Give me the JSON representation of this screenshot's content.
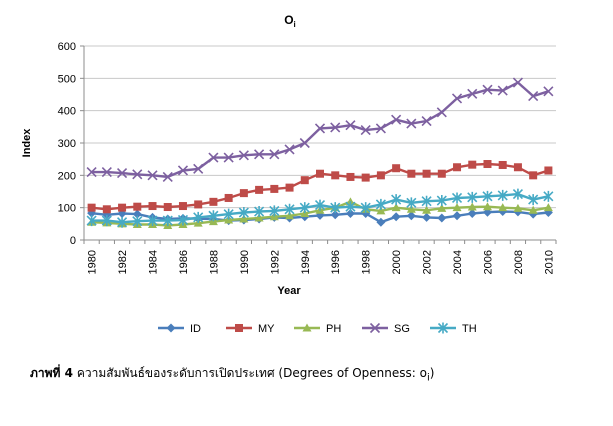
{
  "figure": {
    "caption_bold": "ภาพที่ 4",
    "caption_text": "ความสัมพันธ์ของระดับการเปิดประเทศ (Degrees of Openness: o",
    "caption_sub": "i",
    "caption_close": ")"
  },
  "chart_data": {
    "type": "line",
    "title": "O",
    "title_sub": "i",
    "xlabel": "Year",
    "ylabel": "Index",
    "ylim": [
      0,
      600
    ],
    "yticks": [
      0,
      100,
      200,
      300,
      400,
      500,
      600
    ],
    "xtick_labels": [
      "1980",
      "1982",
      "1984",
      "1986",
      "1988",
      "1990",
      "1992",
      "1994",
      "1996",
      "1998",
      "2000",
      "2002",
      "2004",
      "2006",
      "2008",
      "2010"
    ],
    "x": [
      1980,
      1981,
      1982,
      1983,
      1984,
      1985,
      1986,
      1987,
      1988,
      1989,
      1990,
      1991,
      1992,
      1993,
      1994,
      1995,
      1996,
      1997,
      1998,
      1999,
      2000,
      2001,
      2002,
      2003,
      2004,
      2005,
      2006,
      2007,
      2008,
      2009,
      2010
    ],
    "grid": "horizontal",
    "legend_position": "bottom",
    "series": [
      {
        "name": "ID",
        "color": "#4a7ebb",
        "marker": "diamond",
        "values": [
          83,
          78,
          82,
          80,
          70,
          65,
          67,
          66,
          65,
          60,
          62,
          65,
          70,
          68,
          72,
          76,
          78,
          82,
          82,
          55,
          72,
          75,
          70,
          68,
          75,
          82,
          86,
          88,
          87,
          80,
          85
        ]
      },
      {
        "name": "MY",
        "color": "#be4b48",
        "marker": "square",
        "values": [
          100,
          95,
          100,
          103,
          105,
          102,
          105,
          110,
          118,
          130,
          145,
          155,
          158,
          162,
          185,
          205,
          200,
          195,
          193,
          200,
          222,
          205,
          205,
          205,
          225,
          233,
          235,
          232,
          225,
          200,
          215
        ]
      },
      {
        "name": "PH",
        "color": "#98b954",
        "marker": "triangle",
        "values": [
          55,
          53,
          50,
          48,
          48,
          45,
          48,
          52,
          57,
          62,
          65,
          68,
          72,
          75,
          82,
          92,
          100,
          118,
          95,
          90,
          100,
          95,
          92,
          98,
          100,
          102,
          103,
          100,
          98,
          92,
          100
        ]
      },
      {
        "name": "SG",
        "color": "#7d60a0",
        "marker": "x",
        "values": [
          210,
          210,
          207,
          203,
          200,
          195,
          215,
          220,
          255,
          255,
          262,
          265,
          265,
          280,
          300,
          345,
          348,
          355,
          340,
          345,
          372,
          360,
          368,
          395,
          438,
          452,
          465,
          462,
          487,
          445,
          460
        ]
      },
      {
        "name": "TH",
        "color": "#46aac5",
        "marker": "star",
        "values": [
          60,
          60,
          55,
          58,
          60,
          60,
          62,
          70,
          75,
          80,
          85,
          88,
          90,
          95,
          100,
          108,
          100,
          103,
          100,
          110,
          125,
          115,
          120,
          122,
          130,
          132,
          135,
          138,
          142,
          125,
          135
        ]
      }
    ]
  }
}
